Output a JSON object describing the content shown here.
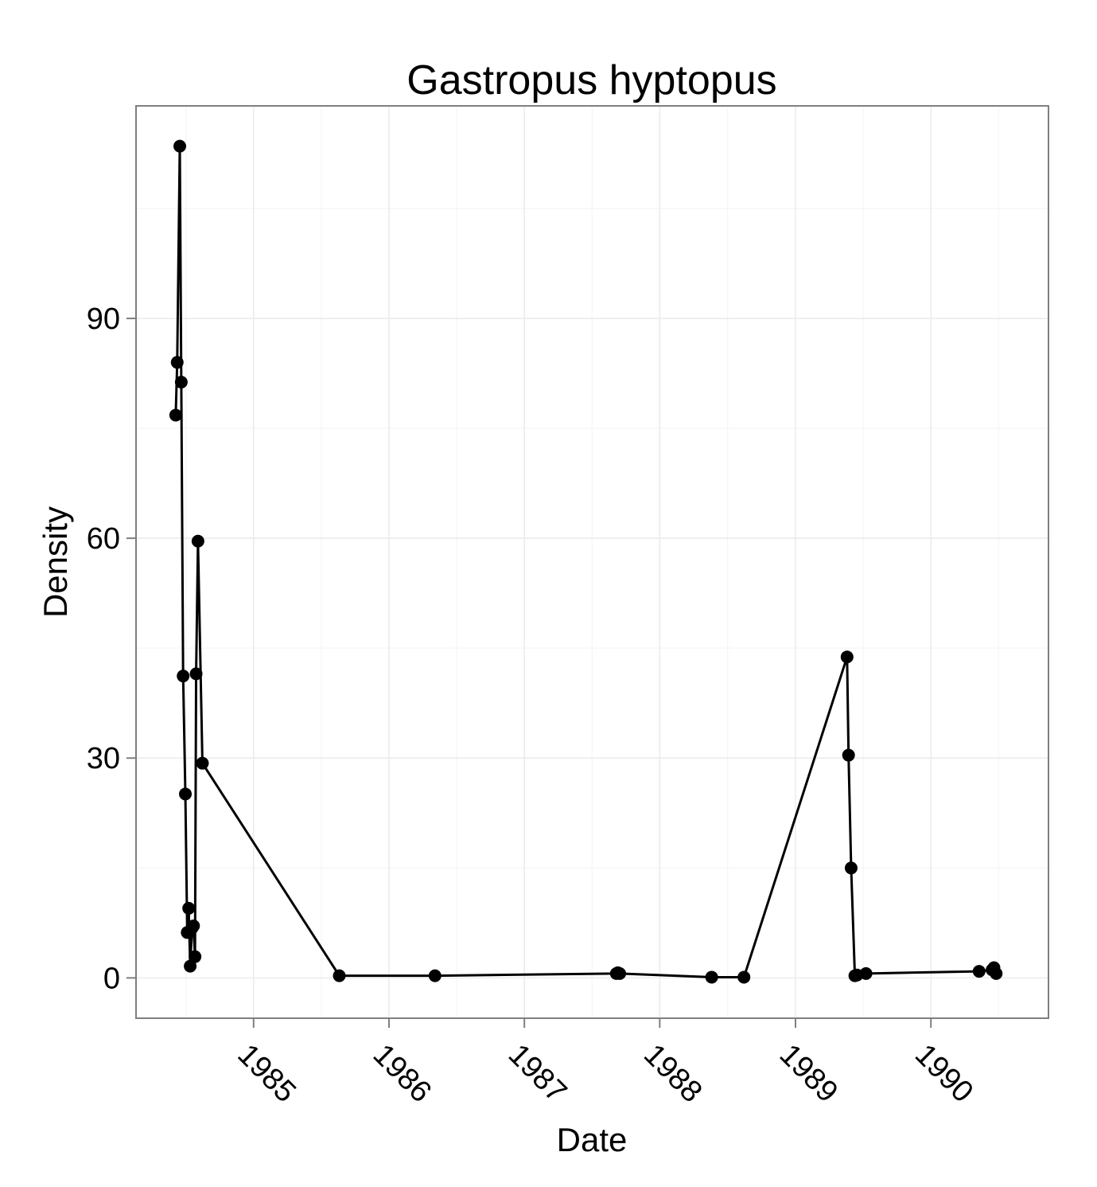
{
  "chart_data": {
    "type": "line",
    "title": "Gastropus hyptopus",
    "xlabel": "Date",
    "ylabel": "Density",
    "x_scale": "date",
    "xlim": [
      "1984-02-19",
      "1990-11-14"
    ],
    "ylim": [
      -5.5,
      119
    ],
    "x_ticks": [
      "1985",
      "1986",
      "1987",
      "1988",
      "1989",
      "1990"
    ],
    "x_tick_dates": [
      "1985-01-01",
      "1986-01-01",
      "1987-01-01",
      "1988-01-01",
      "1989-01-01",
      "1990-01-01"
    ],
    "y_ticks": [
      0,
      30,
      60,
      90
    ],
    "grid": true,
    "markers": true,
    "series": [
      {
        "points": [
          {
            "x": "1984-06-05",
            "y": 76.8
          },
          {
            "x": "1984-06-09",
            "y": 84.0
          },
          {
            "x": "1984-06-16",
            "y": 113.5
          },
          {
            "x": "1984-06-20",
            "y": 81.3
          },
          {
            "x": "1984-06-25",
            "y": 41.2
          },
          {
            "x": "1984-07-01",
            "y": 25.1
          },
          {
            "x": "1984-07-06",
            "y": 6.2
          },
          {
            "x": "1984-07-10",
            "y": 9.5
          },
          {
            "x": "1984-07-14",
            "y": 1.6
          },
          {
            "x": "1984-07-19",
            "y": 6.8
          },
          {
            "x": "1984-07-23",
            "y": 7.1
          },
          {
            "x": "1984-07-27",
            "y": 2.9
          },
          {
            "x": "1984-07-30",
            "y": 41.5
          },
          {
            "x": "1984-08-04",
            "y": 59.6
          },
          {
            "x": "1984-08-16",
            "y": 29.3
          },
          {
            "x": "1985-08-20",
            "y": 0.3
          },
          {
            "x": "1986-05-05",
            "y": 0.3
          },
          {
            "x": "1987-09-06",
            "y": 0.6
          },
          {
            "x": "1987-09-10",
            "y": 0.7
          },
          {
            "x": "1987-09-15",
            "y": 0.6
          },
          {
            "x": "1988-05-20",
            "y": 0.1
          },
          {
            "x": "1988-08-15",
            "y": 0.1
          },
          {
            "x": "1989-05-20",
            "y": 43.8
          },
          {
            "x": "1989-05-24",
            "y": 30.4
          },
          {
            "x": "1989-05-31",
            "y": 15.0
          },
          {
            "x": "1989-06-10",
            "y": 0.3
          },
          {
            "x": "1989-06-16",
            "y": 0.4
          },
          {
            "x": "1989-07-10",
            "y": 0.6
          },
          {
            "x": "1990-05-11",
            "y": 0.9
          },
          {
            "x": "1990-06-15",
            "y": 1.1
          },
          {
            "x": "1990-06-20",
            "y": 1.4
          },
          {
            "x": "1990-06-26",
            "y": 0.6
          }
        ]
      }
    ]
  }
}
